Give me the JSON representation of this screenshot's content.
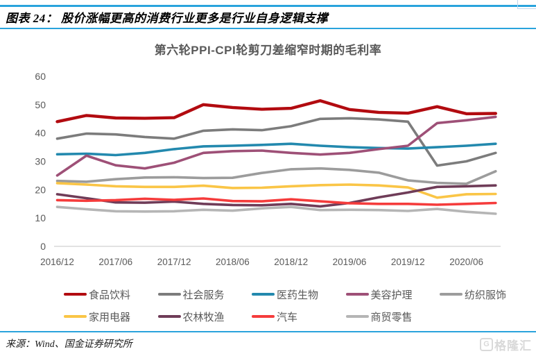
{
  "header": {
    "title": "图表 24： 股价涨幅更高的消费行业更多是行业自身逻辑支撑"
  },
  "chart_data": {
    "type": "line",
    "title": "第六轮PPI-CPI轮剪刀差缩窄时期的毛利率",
    "ylabel": "",
    "xlabel": "",
    "ylim": [
      0,
      60
    ],
    "y_ticks": [
      0,
      10,
      20,
      30,
      40,
      50,
      60
    ],
    "x_tick_labels": [
      "2016/12",
      "2017/06",
      "2017/12",
      "2018/06",
      "2018/12",
      "2019/06",
      "2019/12",
      "2020/06"
    ],
    "grid": false,
    "legend_position": "bottom",
    "categories": [
      "2016/12",
      "2017/03",
      "2017/06",
      "2017/09",
      "2017/12",
      "2018/03",
      "2018/06",
      "2018/09",
      "2018/12",
      "2019/03",
      "2019/06",
      "2019/09",
      "2019/12",
      "2020/03",
      "2020/06",
      "2020/09"
    ],
    "series": [
      {
        "name": "食品饮料",
        "color": "#B20B10",
        "width": 4.4,
        "values": [
          44.0,
          46.2,
          45.3,
          45.2,
          45.4,
          50.0,
          49.0,
          48.4,
          48.7,
          51.4,
          48.3,
          47.3,
          47.0,
          49.3,
          46.8,
          46.9
        ]
      },
      {
        "name": "社会服务",
        "color": "#7C7C7C",
        "width": 3.6,
        "values": [
          38.0,
          39.8,
          39.5,
          38.6,
          38.0,
          40.8,
          41.3,
          41.0,
          42.4,
          45.0,
          45.2,
          44.8,
          44.0,
          28.5,
          30.0,
          33.0
        ]
      },
      {
        "name": "医药生物",
        "color": "#2389AE",
        "width": 3.6,
        "values": [
          32.5,
          32.7,
          32.2,
          33.0,
          34.3,
          35.3,
          35.5,
          35.8,
          36.2,
          35.5,
          35.0,
          34.7,
          34.5,
          35.0,
          35.5,
          36.2
        ]
      },
      {
        "name": "美容护理",
        "color": "#9E5077",
        "width": 3.6,
        "values": [
          25.0,
          32.0,
          28.6,
          27.5,
          29.5,
          33.0,
          33.6,
          33.8,
          33.0,
          32.4,
          33.0,
          34.3,
          35.5,
          43.5,
          44.5,
          45.7
        ]
      },
      {
        "name": "纺织服饰",
        "color": "#9C9C9C",
        "width": 3.6,
        "values": [
          23.1,
          22.8,
          23.7,
          24.3,
          24.4,
          24.1,
          24.2,
          25.9,
          27.2,
          27.5,
          27.0,
          26.0,
          23.3,
          22.4,
          22.1,
          26.5
        ]
      },
      {
        "name": "家用电器",
        "color": "#FAC546",
        "width": 3.6,
        "values": [
          22.3,
          21.8,
          21.2,
          21.0,
          21.0,
          21.4,
          20.6,
          20.7,
          21.2,
          21.6,
          21.8,
          21.5,
          20.8,
          17.2,
          18.4,
          18.5
        ]
      },
      {
        "name": "农林牧渔",
        "color": "#6F3C58",
        "width": 3.6,
        "values": [
          18.4,
          17.0,
          15.5,
          15.4,
          15.8,
          15.0,
          14.6,
          14.5,
          15.0,
          14.1,
          15.3,
          17.3,
          19.0,
          21.0,
          21.2,
          21.5
        ]
      },
      {
        "name": "汽车",
        "color": "#F53C3C",
        "width": 3.6,
        "values": [
          16.3,
          16.1,
          16.3,
          16.8,
          16.4,
          16.9,
          16.0,
          15.9,
          16.6,
          15.9,
          15.2,
          15.0,
          15.0,
          14.7,
          15.0,
          15.3
        ]
      },
      {
        "name": "商贸零售",
        "color": "#B5B5B5",
        "width": 3.6,
        "values": [
          13.9,
          13.1,
          12.4,
          12.3,
          12.4,
          12.9,
          12.6,
          13.4,
          13.9,
          12.8,
          12.9,
          12.8,
          12.5,
          13.2,
          12.2,
          11.5
        ]
      }
    ]
  },
  "footer": {
    "source": "来源：Wind、国金证券研究所",
    "logo_icon": "G",
    "logo_text": "格隆汇"
  },
  "colors": {
    "accent_blue": "#29A3DC",
    "axis_text": "#595959",
    "axis_line": "#D9D9D9",
    "logo_gray": "#D9D9D9"
  }
}
